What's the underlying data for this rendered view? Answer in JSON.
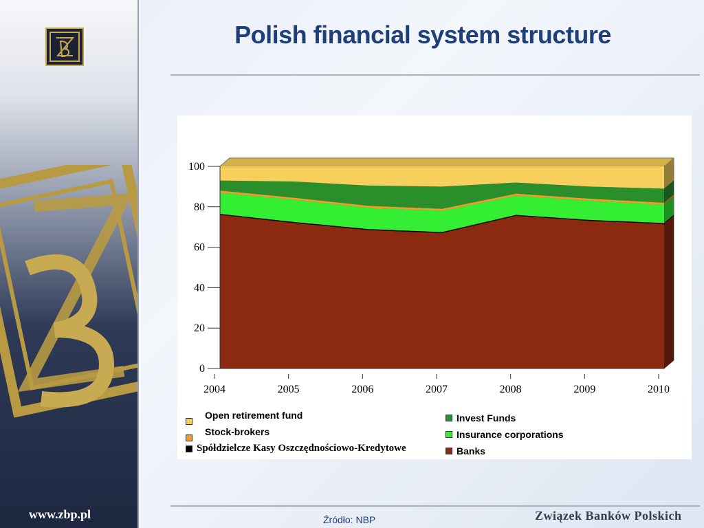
{
  "title": "Polish financial system structure",
  "website": "www.zbp.pl",
  "org_name": "Związek Banków Polskich",
  "source": "Źródło: NBP",
  "colors": {
    "title": "#1f3f78",
    "open_retirement_fund": "#f6cf5c",
    "stock_brokers": "#f29a2e",
    "skok": "#000000",
    "invest_funds": "#2a8f2a",
    "insurance": "#33ee33",
    "banks": "#8b2a10"
  },
  "legend": [
    {
      "label": "Open retirement fund",
      "color": "#f6cf5c"
    },
    {
      "label": "Stock-brokers",
      "color": "#f29a2e"
    },
    {
      "label": "Spółdzielcze Kasy Oszczędnościowo-Kredytowe",
      "color": "#000000"
    },
    {
      "label": "Invest Funds",
      "color": "#2a8f2a"
    },
    {
      "label": "Insurance corporations",
      "color": "#33ee33"
    },
    {
      "label": "Banks",
      "color": "#8b2a10"
    }
  ],
  "chart_data": {
    "type": "area",
    "stacked": true,
    "x": [
      "2004",
      "2005",
      "2006",
      "2007",
      "2008",
      "2009",
      "2010"
    ],
    "ylim": [
      0,
      100
    ],
    "yticks": [
      0,
      20,
      40,
      60,
      80,
      100
    ],
    "grid": true,
    "legend_position": "bottom",
    "series": [
      {
        "name": "Banks",
        "values": [
          76,
          72,
          68.5,
          67,
          75.5,
          73,
          71.5
        ]
      },
      {
        "name": "Spółdzielcze Kasy Oszczędnościowo-Kredytowe",
        "values": [
          0.5,
          0.5,
          0.5,
          0.5,
          0.5,
          0.5,
          0.5
        ]
      },
      {
        "name": "Insurance corporations",
        "values": [
          10.5,
          11,
          10.5,
          10.5,
          9.5,
          9.5,
          9
        ]
      },
      {
        "name": "Stock-brokers",
        "values": [
          1,
          1,
          1,
          1,
          1,
          1,
          1
        ]
      },
      {
        "name": "Invest Funds",
        "values": [
          5,
          8,
          10,
          11,
          5.5,
          6,
          7
        ]
      },
      {
        "name": "Open retirement fund",
        "values": [
          7,
          7.5,
          9.5,
          10,
          8,
          10,
          11
        ]
      }
    ]
  }
}
